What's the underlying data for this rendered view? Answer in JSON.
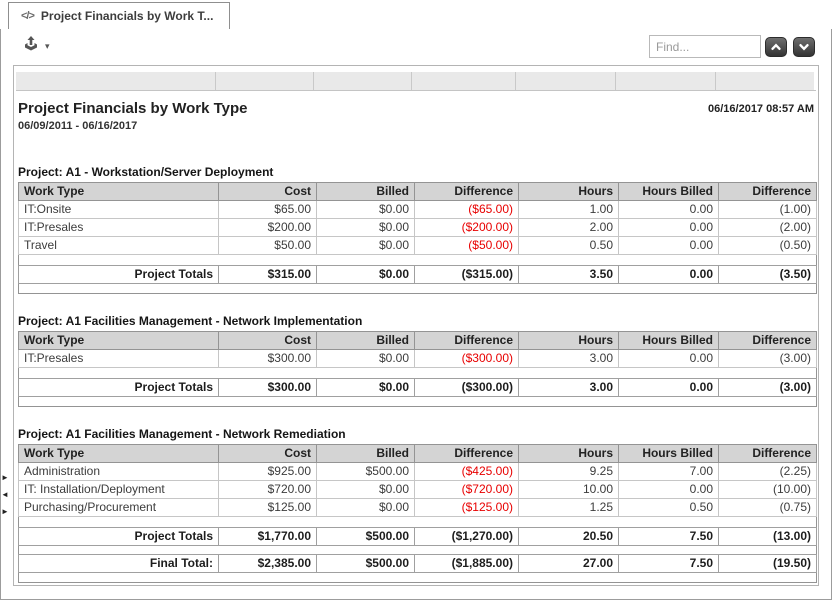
{
  "tab": {
    "label": "Project Financials by Work T...",
    "icon": "code-icon"
  },
  "toolbar": {
    "export_icon": "export-tray-up-arrow",
    "find_placeholder": "Find..."
  },
  "icons": {
    "code_glyph": "</>",
    "caret_down": "▾",
    "marker_right": "►",
    "marker_left": "◄"
  },
  "colors": {
    "negative": "#e80000",
    "table_header_bg": "#d4d4d4"
  },
  "report": {
    "title": "Project Financials by Work Type",
    "date_range": "06/09/2011 - 06/16/2017",
    "generated": "06/16/2017 08:57 AM",
    "columns": [
      "Work Type",
      "Cost",
      "Billed",
      "Difference",
      "Hours",
      "Hours Billed",
      "Difference"
    ],
    "sections": [
      {
        "heading": "Project: A1 - Workstation/Server Deployment",
        "rows": [
          [
            "IT:Onsite",
            "$65.00",
            "$0.00",
            "($65.00)",
            "1.00",
            "0.00",
            "(1.00)"
          ],
          [
            "IT:Presales",
            "$200.00",
            "$0.00",
            "($200.00)",
            "2.00",
            "0.00",
            "(2.00)"
          ],
          [
            "Travel",
            "$50.00",
            "$0.00",
            "($50.00)",
            "0.50",
            "0.00",
            "(0.50)"
          ]
        ],
        "totals": {
          "label": "Project Totals",
          "values": [
            "$315.00",
            "$0.00",
            "($315.00)",
            "3.50",
            "0.00",
            "(3.50)"
          ]
        }
      },
      {
        "heading": "Project: A1 Facilities Management - Network Implementation",
        "rows": [
          [
            "IT:Presales",
            "$300.00",
            "$0.00",
            "($300.00)",
            "3.00",
            "0.00",
            "(3.00)"
          ]
        ],
        "totals": {
          "label": "Project Totals",
          "values": [
            "$300.00",
            "$0.00",
            "($300.00)",
            "3.00",
            "0.00",
            "(3.00)"
          ]
        }
      },
      {
        "heading": "Project: A1 Facilities Management - Network Remediation",
        "rows": [
          [
            "Administration",
            "$925.00",
            "$500.00",
            "($425.00)",
            "9.25",
            "7.00",
            "(2.25)"
          ],
          [
            "IT: Installation/Deployment",
            "$720.00",
            "$0.00",
            "($720.00)",
            "10.00",
            "0.00",
            "(10.00)"
          ],
          [
            "Purchasing/Procurement",
            "$125.00",
            "$0.00",
            "($125.00)",
            "1.25",
            "0.50",
            "(0.75)"
          ]
        ],
        "totals": {
          "label": "Project Totals",
          "values": [
            "$1,770.00",
            "$500.00",
            "($1,270.00)",
            "20.50",
            "7.50",
            "(13.00)"
          ]
        },
        "final": {
          "label": "Final Total:",
          "values": [
            "$2,385.00",
            "$500.00",
            "($1,885.00)",
            "27.00",
            "7.50",
            "(19.50)"
          ]
        }
      }
    ]
  }
}
